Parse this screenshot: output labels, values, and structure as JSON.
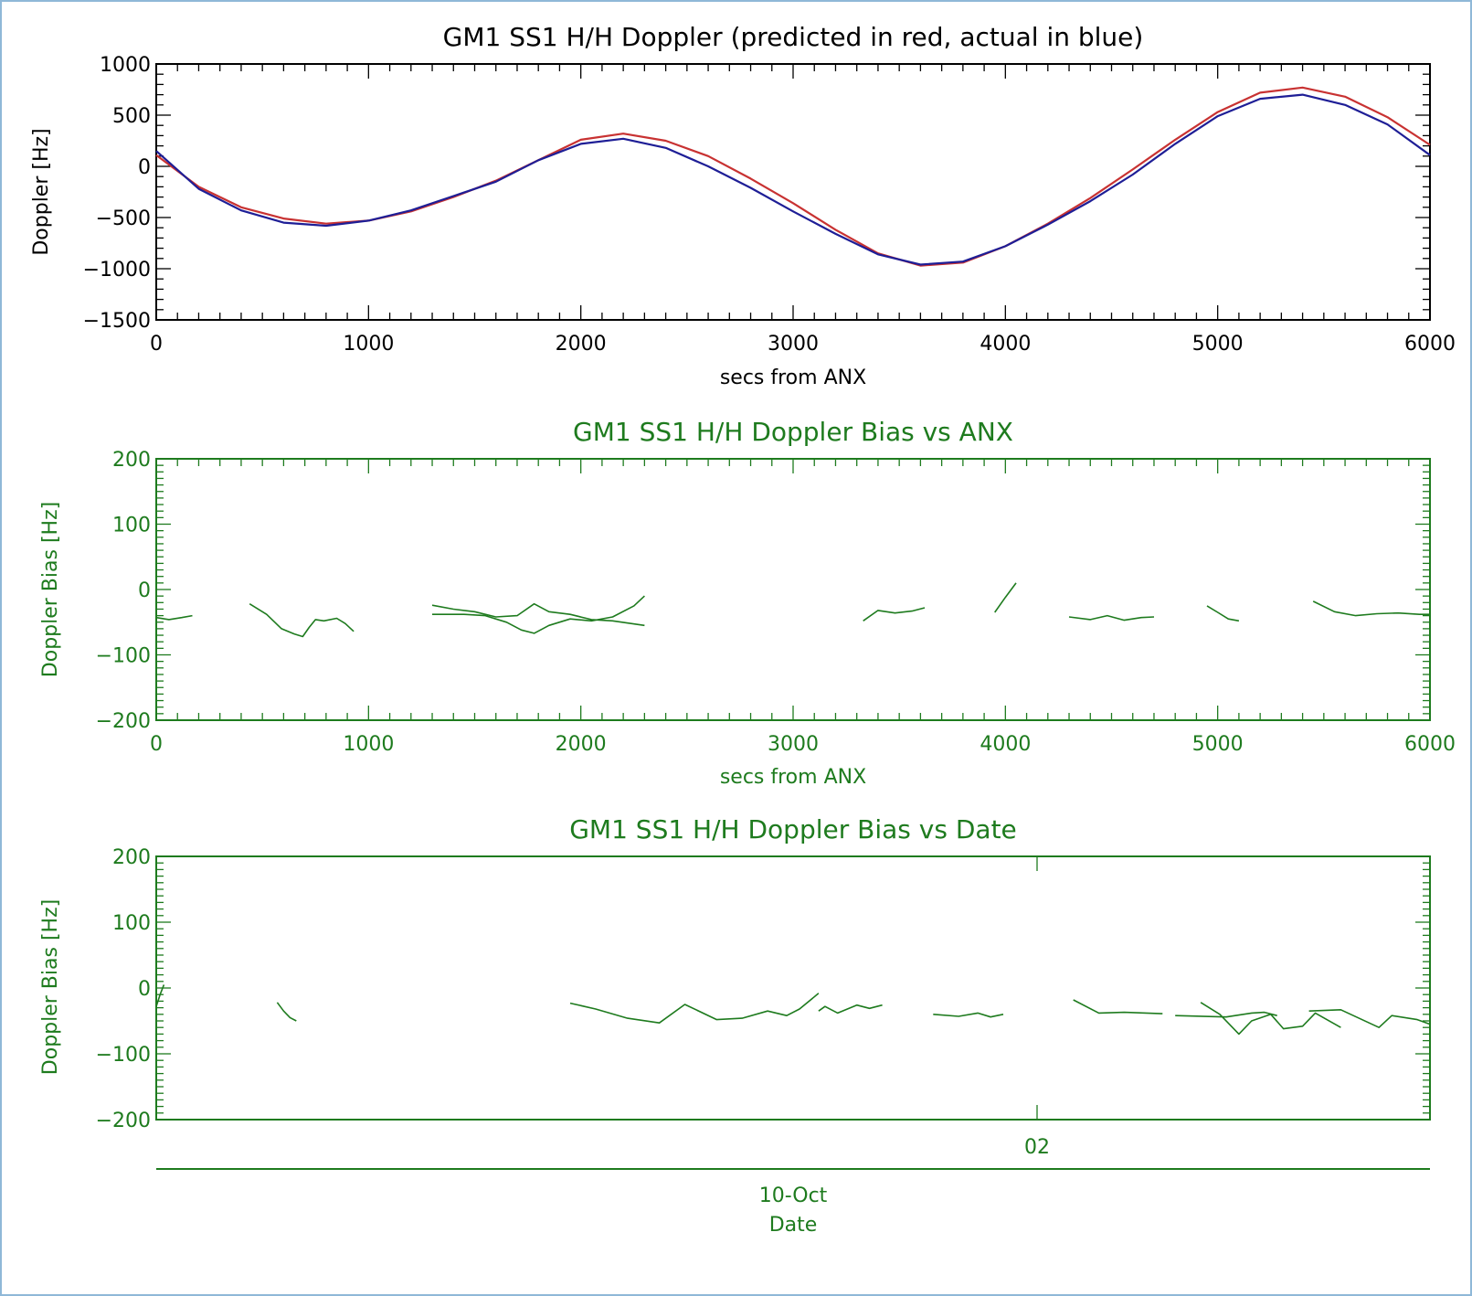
{
  "colors": {
    "black": "#000000",
    "green": "#1e7b1e",
    "predicted": "#c83232",
    "actual": "#1e1e96",
    "frame": "#8fb8d8"
  },
  "chart_data": [
    {
      "type": "line",
      "title": "GM1 SS1 H/H Doppler (predicted in red, actual in blue)",
      "xlabel": "secs from ANX",
      "ylabel": "Doppler [Hz]",
      "xlim": [
        0,
        6000
      ],
      "ylim": [
        -1500,
        1000
      ],
      "xticks": [
        0,
        1000,
        2000,
        3000,
        4000,
        5000,
        6000
      ],
      "yticks": [
        -1500,
        -1000,
        -500,
        0,
        500,
        1000
      ],
      "series": [
        {
          "color": "predicted",
          "x": [
            0,
            200,
            400,
            600,
            800,
            1000,
            1200,
            1400,
            1600,
            1800,
            2000,
            2200,
            2400,
            2600,
            2800,
            3000,
            3200,
            3400,
            3600,
            3800,
            4000,
            4200,
            4400,
            4600,
            4800,
            5000,
            5200,
            5400,
            5600,
            5800,
            6000
          ],
          "y": [
            110,
            -200,
            -400,
            -510,
            -560,
            -530,
            -440,
            -300,
            -140,
            60,
            260,
            320,
            250,
            100,
            -120,
            -360,
            -620,
            -850,
            -970,
            -940,
            -780,
            -560,
            -310,
            -30,
            260,
            530,
            720,
            770,
            680,
            480,
            210
          ]
        },
        {
          "color": "actual",
          "x": [
            0,
            200,
            400,
            600,
            800,
            1000,
            1200,
            1400,
            1600,
            1800,
            2000,
            2200,
            2400,
            2600,
            2800,
            3000,
            3200,
            3400,
            3600,
            3800,
            4000,
            4200,
            4400,
            4600,
            4800,
            5000,
            5200,
            5400,
            5600,
            5800,
            6000
          ],
          "y": [
            150,
            -220,
            -430,
            -550,
            -580,
            -530,
            -430,
            -290,
            -150,
            60,
            220,
            270,
            180,
            0,
            -210,
            -440,
            -660,
            -860,
            -960,
            -930,
            -780,
            -570,
            -340,
            -80,
            220,
            490,
            660,
            700,
            600,
            410,
            110
          ]
        }
      ]
    },
    {
      "type": "line",
      "title": "GM1 SS1 H/H Doppler Bias vs ANX",
      "xlabel": "secs from ANX",
      "ylabel": "Doppler Bias [Hz]",
      "xlim": [
        0,
        6000
      ],
      "ylim": [
        -200,
        200
      ],
      "xticks": [
        0,
        1000,
        2000,
        3000,
        4000,
        5000,
        6000
      ],
      "yticks": [
        -200,
        -100,
        0,
        100,
        200
      ],
      "series": [
        {
          "x": [
            0,
            60,
            120,
            170
          ],
          "y": [
            -43,
            -46,
            -43,
            -40
          ]
        },
        {
          "x": [
            440,
            520,
            590,
            650,
            690,
            720,
            750,
            790,
            850,
            890,
            930
          ],
          "y": [
            -22,
            -38,
            -60,
            -68,
            -72,
            -58,
            -46,
            -48,
            -44,
            -52,
            -64
          ]
        },
        {
          "x": [
            1300,
            1450,
            1550,
            1650,
            1720,
            1780,
            1850,
            1950,
            2050,
            2150,
            2250,
            2300
          ],
          "y": [
            -38,
            -38,
            -40,
            -50,
            -62,
            -67,
            -55,
            -45,
            -48,
            -42,
            -25,
            -10
          ]
        },
        {
          "x": [
            1300,
            1400,
            1500,
            1600,
            1700,
            1780,
            1850,
            1950,
            2050,
            2150,
            2300
          ],
          "y": [
            -24,
            -30,
            -34,
            -42,
            -40,
            -22,
            -34,
            -38,
            -46,
            -48,
            -55
          ]
        },
        {
          "x": [
            3330,
            3400,
            3480,
            3560,
            3620
          ],
          "y": [
            -48,
            -32,
            -36,
            -33,
            -28
          ]
        },
        {
          "x": [
            3950,
            4000,
            4050
          ],
          "y": [
            -35,
            -12,
            10
          ]
        },
        {
          "x": [
            4300,
            4400,
            4480,
            4560,
            4640,
            4700
          ],
          "y": [
            -42,
            -46,
            -40,
            -47,
            -43,
            -42
          ]
        },
        {
          "x": [
            4950,
            5000,
            5050,
            5100
          ],
          "y": [
            -25,
            -35,
            -45,
            -48
          ]
        },
        {
          "x": [
            5450,
            5550,
            5650,
            5750,
            5850,
            5950,
            6000
          ],
          "y": [
            -18,
            -34,
            -40,
            -37,
            -36,
            -38,
            -38
          ]
        }
      ]
    },
    {
      "type": "line",
      "title": "GM1 SS1 H/H Doppler Bias vs Date",
      "ylabel": "Doppler Bias [Hz]",
      "ylim": [
        -200,
        200
      ],
      "yticks": [
        -200,
        -100,
        0,
        100,
        200
      ],
      "x_tick_label": "02",
      "date_label": "10-Oct",
      "xlabel": "Date",
      "series": [
        {
          "x": [
            0,
            0.003,
            0.006
          ],
          "y": [
            -28,
            -10,
            5
          ]
        },
        {
          "x": [
            0.095,
            0.1,
            0.105,
            0.11
          ],
          "y": [
            -22,
            -35,
            -45,
            -50
          ]
        },
        {
          "x": [
            0.325,
            0.345,
            0.37,
            0.395,
            0.415,
            0.44,
            0.46,
            0.48,
            0.495,
            0.505,
            0.52
          ],
          "y": [
            -23,
            -32,
            -46,
            -53,
            -25,
            -48,
            -46,
            -35,
            -42,
            -32,
            -8
          ]
        },
        {
          "x": [
            0.52,
            0.525,
            0.535,
            0.55,
            0.56,
            0.57
          ],
          "y": [
            -35,
            -28,
            -38,
            -26,
            -31,
            -26
          ]
        },
        {
          "x": [
            0.61,
            0.63,
            0.645,
            0.655,
            0.665
          ],
          "y": [
            -40,
            -43,
            -38,
            -44,
            -40
          ]
        },
        {
          "x": [
            0.72,
            0.74,
            0.76,
            0.79
          ],
          "y": [
            -18,
            -38,
            -37,
            -39
          ]
        },
        {
          "x": [
            0.8,
            0.84,
            0.86,
            0.87,
            0.88
          ],
          "y": [
            -42,
            -44,
            -38,
            -37,
            -42
          ]
        },
        {
          "x": [
            0.82,
            0.835,
            0.85,
            0.86,
            0.875,
            0.885,
            0.9,
            0.91,
            0.93
          ],
          "y": [
            -22,
            -40,
            -70,
            -50,
            -40,
            -62,
            -58,
            -38,
            -60
          ]
        },
        {
          "x": [
            0.905,
            0.93,
            0.96,
            0.97,
            0.99,
            1.0
          ],
          "y": [
            -35,
            -33,
            -60,
            -42,
            -48,
            -55
          ]
        }
      ]
    }
  ]
}
